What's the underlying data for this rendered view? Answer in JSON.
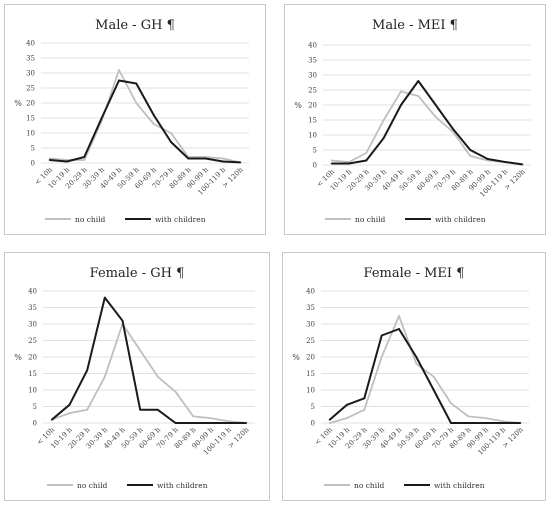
{
  "colors": {
    "no_child": "#bfbfbf",
    "no_child_dark": "#a6a6a6",
    "with_children": "#1a1a1a"
  },
  "chart_data": [
    {
      "type": "line",
      "title": "Male - GH ¶",
      "ylabel": "%",
      "ylim": [
        0,
        40
      ],
      "yticks": [
        0,
        5,
        10,
        15,
        20,
        25,
        30,
        35,
        40
      ],
      "categories": [
        "< 10h",
        "10-19 h",
        "20-29 h",
        "30-39 h",
        "40-49 h",
        "50-59 h",
        "60-69 h",
        "70-79 h",
        "80-89 h",
        "90-99 h",
        "100-119 h",
        "> 120h"
      ],
      "series": [
        {
          "name": "no child",
          "values": [
            1.5,
            1,
            1,
            14,
            31,
            20,
            13,
            10,
            2,
            2,
            1.5,
            0.2
          ]
        },
        {
          "name": "with children",
          "values": [
            1,
            0.5,
            2,
            15,
            27.5,
            26.5,
            16,
            7,
            1.5,
            1.5,
            0.5,
            0.2
          ]
        }
      ],
      "legend": "bottom",
      "grid": true
    },
    {
      "type": "line",
      "title": "Male - MEI ¶",
      "ylabel": "%",
      "ylim": [
        0,
        40
      ],
      "yticks": [
        0,
        5,
        10,
        15,
        20,
        25,
        30,
        35,
        40
      ],
      "categories": [
        "< 10h",
        "10-19 h",
        "20-29 h",
        "30-39 h",
        "40-49 h",
        "50-59 h",
        "60-69 h",
        "70-79 h",
        "80-89 h",
        "90-99 h",
        "100-119 h",
        "> 120h"
      ],
      "series": [
        {
          "name": "no child",
          "values": [
            1.5,
            1,
            4,
            15,
            24.5,
            23,
            16,
            11,
            3,
            1.5,
            1,
            0.2
          ]
        },
        {
          "name": "with children",
          "values": [
            0.5,
            0.5,
            1.5,
            9,
            20,
            28,
            20,
            12,
            5,
            2,
            1,
            0.2
          ]
        }
      ],
      "legend": "bottom",
      "grid": true
    },
    {
      "type": "line",
      "title": "Female - GH ¶",
      "ylabel": "%",
      "ylim": [
        0,
        40
      ],
      "yticks": [
        0,
        5,
        10,
        15,
        20,
        25,
        30,
        35,
        40
      ],
      "categories": [
        "< 10h",
        "10-19 h",
        "20-29 h",
        "30-39 h",
        "40-49 h",
        "50-59 h",
        "60-69 h",
        "70-79 h",
        "80-89 h",
        "90-99 h",
        "100-119 h",
        "> 120h"
      ],
      "series": [
        {
          "name": "no child",
          "values": [
            1,
            3,
            4,
            14,
            30,
            22,
            14,
            9.5,
            2,
            1.5,
            0.5,
            0
          ]
        },
        {
          "name": "with children",
          "values": [
            1,
            5.5,
            16,
            38,
            31,
            4,
            4,
            0,
            0,
            0,
            0,
            0
          ]
        }
      ],
      "legend": "bottom",
      "grid": true
    },
    {
      "type": "line",
      "title": "Female - MEI ¶",
      "ylabel": "%",
      "ylim": [
        0,
        40
      ],
      "yticks": [
        0,
        5,
        10,
        15,
        20,
        25,
        30,
        35,
        40
      ],
      "categories": [
        "< 10h",
        "10-19 h",
        "20-29 h",
        "30-39 h",
        "40-49 h",
        "50-59 h",
        "60-69 h",
        "70-79 h",
        "80-89 h",
        "90-99 h",
        "100-119 h",
        "> 120h"
      ],
      "series": [
        {
          "name": "no child",
          "values": [
            0,
            1.5,
            4,
            20,
            32.5,
            18,
            14,
            6,
            2,
            1.5,
            0.5,
            0
          ]
        },
        {
          "name": "with children",
          "values": [
            1,
            5.5,
            7.5,
            26.5,
            28.5,
            20,
            10,
            0,
            0,
            0,
            0,
            0
          ]
        }
      ],
      "legend": "bottom",
      "grid": true
    }
  ]
}
